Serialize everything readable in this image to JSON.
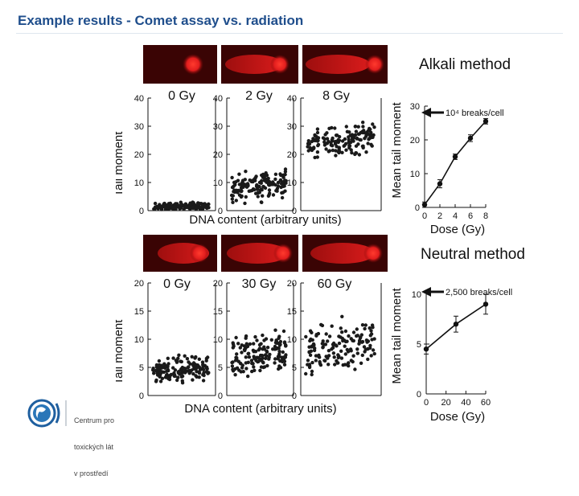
{
  "slide": {
    "title": "Example results - Comet assay vs. radiation"
  },
  "logo": {
    "lines": [
      "Centrum pro",
      "toxických lát",
      "v prostředí"
    ]
  },
  "colors": {
    "title": "#1f4e8c",
    "comet_red": "#e21d1d",
    "comet_bg": "#3a0404",
    "point": "#1a1a1a"
  },
  "chart_data": [
    {
      "type": "scatter",
      "panel": "alkali-scatter",
      "ylabel": "Tail moment",
      "xlabel": "DNA content (arbitrary units)",
      "ylim": [
        0,
        40
      ],
      "yticks": [
        0,
        10,
        20,
        30,
        40
      ],
      "series": [
        {
          "name": "0 Gy",
          "center": 1.5,
          "spread": 2
        },
        {
          "name": "2 Gy",
          "center": 9,
          "spread": 8
        },
        {
          "name": "8 Gy",
          "center": 25,
          "spread": 8
        }
      ]
    },
    {
      "type": "line",
      "panel": "alkali-dose",
      "title": "Alkali method",
      "annotation": "10⁴ breaks/cell",
      "ylabel": "Mean tail moment",
      "xlabel": "Dose (Gy)",
      "x": [
        0,
        2,
        4,
        6,
        8
      ],
      "y": [
        0.8,
        7,
        15,
        20.5,
        25.5
      ],
      "err": [
        0.8,
        1.2,
        0.8,
        1.0,
        0.8
      ],
      "xlim": [
        0,
        8
      ],
      "ylim": [
        0,
        30
      ],
      "xticks": [
        0,
        2,
        4,
        6,
        8
      ],
      "yticks": [
        0,
        10,
        20,
        30
      ]
    },
    {
      "type": "scatter",
      "panel": "neutral-scatter",
      "ylabel": "Tail moment",
      "xlabel": "DNA content (arbitrary units)",
      "ylim": [
        0,
        20
      ],
      "yticks": [
        0,
        5,
        10,
        15,
        20
      ],
      "series": [
        {
          "name": "0 Gy",
          "center": 4.5,
          "spread": 3.5
        },
        {
          "name": "30 Gy",
          "center": 7,
          "spread": 6
        },
        {
          "name": "60 Gy",
          "center": 8.5,
          "spread": 7
        }
      ]
    },
    {
      "type": "line",
      "panel": "neutral-dose",
      "title": "Neutral method",
      "annotation": "2,500 breaks/cell",
      "ylabel": "Mean tail moment",
      "xlabel": "Dose (Gy)",
      "x": [
        0,
        30,
        60
      ],
      "y": [
        4.5,
        7,
        9
      ],
      "err": [
        0.5,
        0.8,
        1.0
      ],
      "xlim": [
        0,
        60
      ],
      "ylim": [
        0,
        10
      ],
      "xticks": [
        0,
        20,
        40,
        60
      ],
      "yticks": [
        0,
        5,
        10
      ]
    }
  ]
}
